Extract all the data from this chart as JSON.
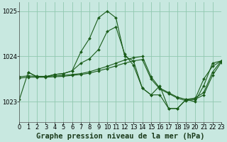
{
  "title": "Graphe pression niveau de la mer (hPa)",
  "background_color": "#c8e8e0",
  "grid_color": "#90c8b0",
  "line_color": "#1a5c1a",
  "marker_color": "#1a5c1a",
  "xlim": [
    0,
    23
  ],
  "ylim": [
    1022.55,
    1025.2
  ],
  "yticks": [
    1023,
    1024,
    1025
  ],
  "xticks": [
    0,
    1,
    2,
    3,
    4,
    5,
    6,
    7,
    8,
    9,
    10,
    11,
    12,
    13,
    14,
    15,
    16,
    17,
    18,
    19,
    20,
    21,
    22,
    23
  ],
  "curves": [
    {
      "x": [
        0,
        1,
        2,
        3,
        4,
        5,
        6,
        7,
        8,
        9,
        10,
        11,
        12,
        13,
        14,
        15,
        16,
        17,
        18,
        19,
        20,
        21,
        22,
        23
      ],
      "y": [
        1023.05,
        1023.65,
        1023.55,
        1023.55,
        1023.6,
        1023.62,
        1023.68,
        1024.1,
        1024.4,
        1024.85,
        1025.0,
        1024.85,
        1024.0,
        1023.9,
        1023.3,
        1023.15,
        1023.15,
        1022.85,
        1022.85,
        1023.05,
        1023.0,
        1023.35,
        1023.85,
        1023.9
      ]
    },
    {
      "x": [
        1,
        2,
        3,
        4,
        5,
        6,
        7,
        8,
        9,
        10,
        11,
        12,
        13,
        14,
        15,
        16,
        17,
        18,
        19,
        20,
        21,
        22,
        23
      ],
      "y": [
        1023.65,
        1023.55,
        1023.55,
        1023.6,
        1023.62,
        1023.68,
        1023.85,
        1023.95,
        1024.15,
        1024.55,
        1024.65,
        1024.05,
        1023.8,
        1023.3,
        1023.15,
        1023.35,
        1022.85,
        1022.85,
        1023.05,
        1023.05,
        1023.5,
        1023.78,
        1023.9
      ]
    },
    {
      "x": [
        0,
        1,
        2,
        3,
        4,
        5,
        6,
        7,
        8,
        9,
        10,
        11,
        12,
        13,
        14,
        15,
        16,
        17,
        18,
        19,
        20,
        21,
        22,
        23
      ],
      "y": [
        1023.55,
        1023.57,
        1023.56,
        1023.56,
        1023.57,
        1023.58,
        1023.6,
        1023.62,
        1023.66,
        1023.72,
        1023.78,
        1023.85,
        1023.92,
        1023.97,
        1024.0,
        1023.55,
        1023.3,
        1023.2,
        1023.1,
        1023.05,
        1023.08,
        1023.2,
        1023.65,
        1023.9
      ]
    },
    {
      "x": [
        0,
        1,
        2,
        3,
        4,
        5,
        6,
        7,
        8,
        9,
        10,
        11,
        12,
        13,
        14,
        15,
        16,
        17,
        18,
        19,
        20,
        21,
        22,
        23
      ],
      "y": [
        1023.52,
        1023.54,
        1023.54,
        1023.54,
        1023.55,
        1023.56,
        1023.58,
        1023.6,
        1023.63,
        1023.68,
        1023.73,
        1023.79,
        1023.85,
        1023.9,
        1023.93,
        1023.5,
        1023.28,
        1023.18,
        1023.08,
        1023.02,
        1023.05,
        1023.15,
        1023.58,
        1023.87
      ]
    }
  ],
  "title_fontsize": 7.5,
  "tick_fontsize": 6,
  "dpi": 100,
  "figsize": [
    3.2,
    2.0
  ]
}
